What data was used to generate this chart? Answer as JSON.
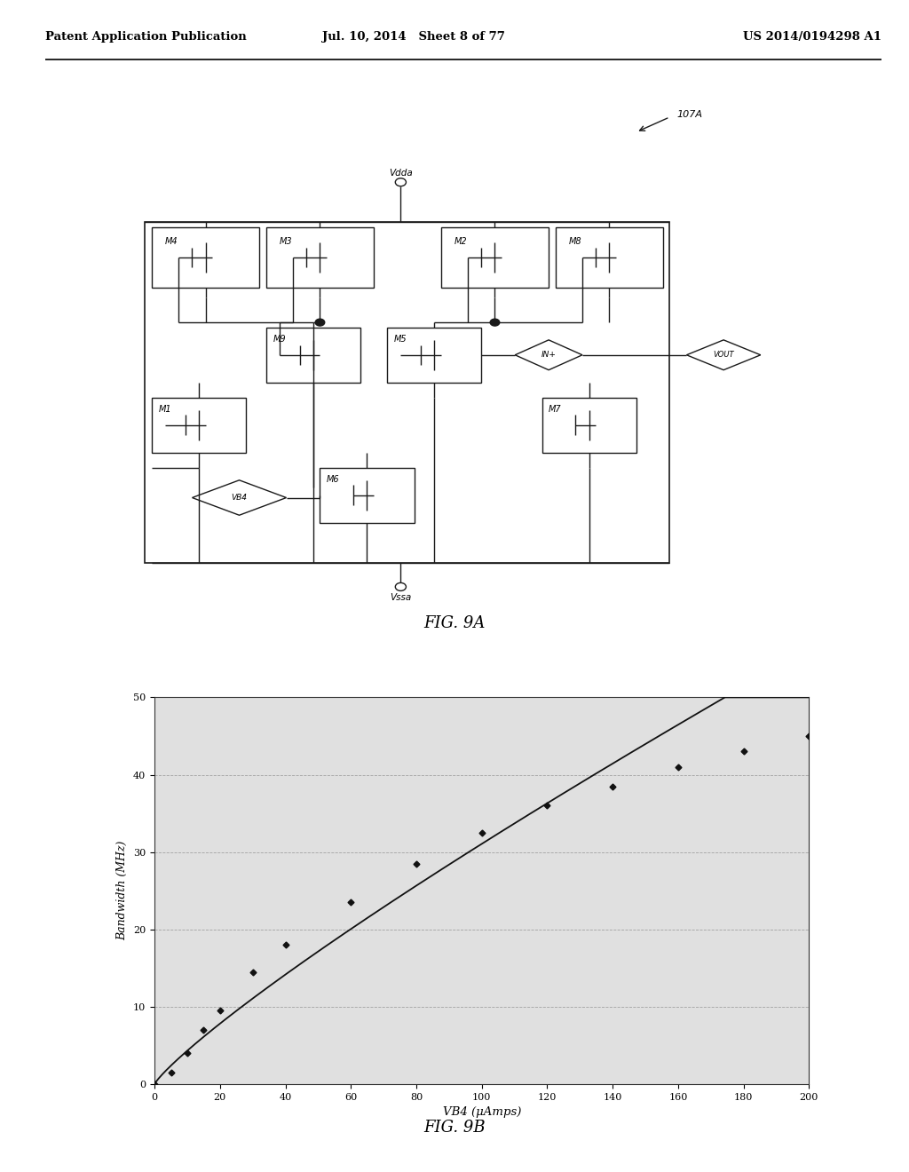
{
  "header_left": "Patent Application Publication",
  "header_mid": "Jul. 10, 2014   Sheet 8 of 77",
  "header_right": "US 2014/0194298 A1",
  "fig9a_label": "FIG. 9A",
  "fig9b_label": "FIG. 9B",
  "ref_label": "107A",
  "graph_xlabel": "VB4 (μAmps)",
  "graph_ylabel": "Bandwidth (MHz)",
  "graph_xlim": [
    0,
    200
  ],
  "graph_ylim": [
    0,
    50
  ],
  "graph_xticks": [
    0,
    20,
    40,
    60,
    80,
    100,
    120,
    140,
    160,
    180,
    200
  ],
  "graph_yticks": [
    0,
    10,
    20,
    30,
    40,
    50
  ],
  "graph_x": [
    0,
    5,
    10,
    15,
    20,
    30,
    40,
    60,
    80,
    100,
    120,
    140,
    160,
    180,
    200
  ],
  "graph_y": [
    0,
    1.5,
    4.0,
    7.0,
    9.5,
    14.5,
    18.0,
    23.5,
    28.5,
    32.5,
    36.0,
    38.5,
    41.0,
    43.0,
    45.0
  ],
  "bg_color": "#e8e8e8",
  "line_color": "#111111",
  "marker_color": "#111111",
  "page_bg": "#d8d8d8"
}
